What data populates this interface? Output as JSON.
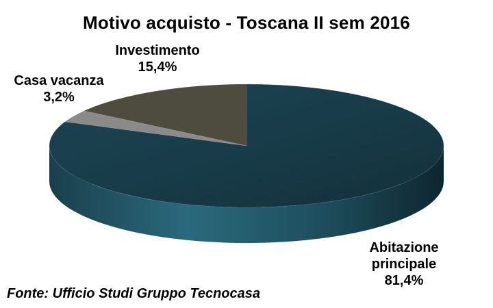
{
  "chart_data": {
    "type": "pie",
    "title": "Motivo acquisto - Toscana II sem 2016",
    "source": "Fonte: Ufficio Studi Gruppo Tecnocasa",
    "slices": [
      {
        "label": "Abitazione principale",
        "label_lines": [
          "Abitazione",
          "principale"
        ],
        "value": 81.4,
        "value_text": "81,4%",
        "color": "#1f4d5c"
      },
      {
        "label": "Casa vacanza",
        "label_lines": [
          "Casa vacanza"
        ],
        "value": 3.2,
        "value_text": "3,2%",
        "color": "#8a8a8a"
      },
      {
        "label": "Investimento",
        "label_lines": [
          "Investimento"
        ],
        "value": 15.4,
        "value_text": "15,4%",
        "color": "#4e4b3f"
      }
    ],
    "three_d": true,
    "legend": "none"
  }
}
